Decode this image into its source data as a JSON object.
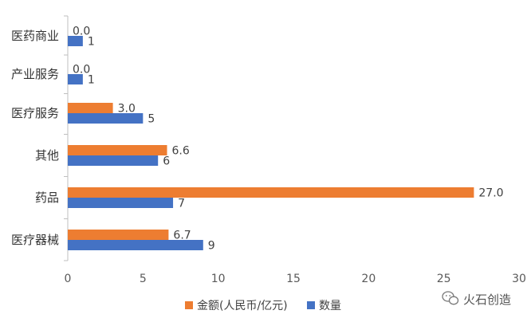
{
  "chart_data": {
    "type": "bar",
    "orientation": "horizontal",
    "categories": [
      "医药商业",
      "产业服务",
      "医疗服务",
      "其他",
      "药品",
      "医疗器械"
    ],
    "series": [
      {
        "name": "金额(人民币/亿元)",
        "color": "#ED7D31",
        "values": [
          0.0,
          0.0,
          3.0,
          6.6,
          27.0,
          6.7
        ],
        "labels": [
          "0.0",
          "0.0",
          "3.0",
          "6.6",
          "27.0",
          "6.7"
        ]
      },
      {
        "name": "数量",
        "color": "#4472C4",
        "values": [
          1,
          1,
          5,
          6,
          7,
          9
        ],
        "labels": [
          "1",
          "1",
          "5",
          "6",
          "7",
          "9"
        ]
      }
    ],
    "xlim": [
      0,
      30
    ],
    "xticks": [
      "0",
      "5",
      "10",
      "15",
      "20",
      "25",
      "30"
    ],
    "grid": false,
    "legend_position": "bottom"
  },
  "watermark": {
    "text": "火石创造"
  }
}
